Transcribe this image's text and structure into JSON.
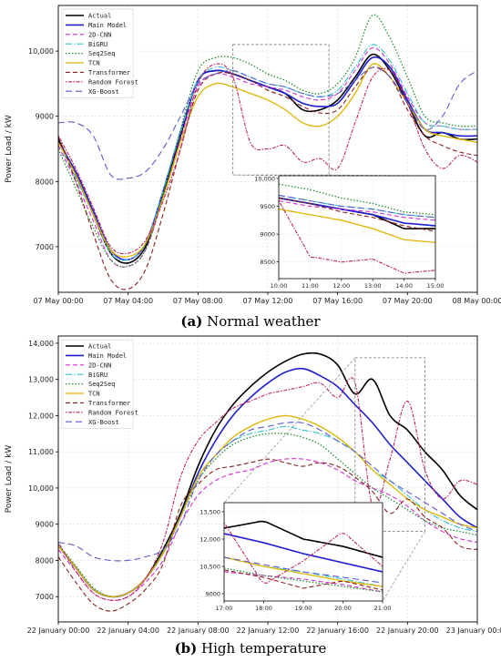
{
  "legend_labels": [
    "Actual",
    "Main Model",
    "2D-CNN",
    "BiGRU",
    "Seq2Seq",
    "TCN",
    "Transformer",
    "Random Forest",
    "XG-Boost"
  ],
  "series_styles": [
    {
      "color": "#000000",
      "dash": "",
      "width": 1.6
    },
    {
      "color": "#1f1fd0",
      "dash": "",
      "width": 1.6
    },
    {
      "color": "#d62fd6",
      "dash": "5,3",
      "width": 1.1
    },
    {
      "color": "#35c4cf",
      "dash": "7,2,1.5,2",
      "width": 1.1
    },
    {
      "color": "#1f8f2f",
      "dash": "1.5,2",
      "width": 1.3
    },
    {
      "color": "#e0b400",
      "dash": "",
      "width": 1.3
    },
    {
      "color": "#8a1f1f",
      "dash": "5,3",
      "width": 1.1
    },
    {
      "color": "#c02060",
      "dash": "1.5,1.5,4,1.5",
      "width": 1.1
    },
    {
      "color": "#5a5ad0",
      "dash": "7,4",
      "width": 1.1
    }
  ],
  "chart_data": [
    {
      "type": "line",
      "caption_letter": "(a)",
      "caption_text": " Normal weather",
      "ylabel": "Power Load / kW",
      "x_tick_labels": [
        "07 May 00:00",
        "07 May 04:00",
        "07 May 08:00",
        "07 May 12:00",
        "07 May 16:00",
        "07 May 20:00",
        "08 May 00:00"
      ],
      "x_tick_hours": [
        0,
        4,
        8,
        12,
        16,
        20,
        24
      ],
      "xlim_hours": [
        0,
        24
      ],
      "y_tick_labels": [
        "7000",
        "8000",
        "9000",
        "10,000"
      ],
      "y_tick_values": [
        7000,
        8000,
        9000,
        10000
      ],
      "ylim": [
        6300,
        10700
      ],
      "grid": true,
      "legend_position": "top-left",
      "x_hours": [
        0,
        1,
        2,
        3,
        4,
        5,
        6,
        7,
        8,
        9,
        10,
        11,
        12,
        13,
        14,
        15,
        16,
        17,
        18,
        19,
        20,
        21,
        22,
        23,
        24
      ],
      "series": [
        {
          "name": "Actual",
          "values": [
            8650,
            8100,
            7500,
            6900,
            6750,
            7000,
            7800,
            8700,
            9550,
            9700,
            9650,
            9550,
            9450,
            9350,
            9100,
            9100,
            9250,
            9600,
            9950,
            9700,
            9200,
            8700,
            8750,
            8650,
            8650
          ]
        },
        {
          "name": "Main Model",
          "values": [
            8600,
            8150,
            7550,
            6950,
            6800,
            7050,
            7850,
            8750,
            9550,
            9700,
            9650,
            9550,
            9450,
            9350,
            9200,
            9150,
            9200,
            9550,
            9900,
            9750,
            9250,
            8800,
            8750,
            8700,
            8700
          ]
        },
        {
          "name": "2D-CNN",
          "values": [
            8550,
            8000,
            7400,
            6800,
            6700,
            6950,
            7750,
            8650,
            9450,
            9650,
            9600,
            9500,
            9450,
            9400,
            9300,
            9250,
            9350,
            9700,
            10050,
            9800,
            9300,
            8900,
            8850,
            8800,
            8800
          ]
        },
        {
          "name": "BiGRU",
          "values": [
            8600,
            8050,
            7500,
            6900,
            6800,
            7050,
            7850,
            8750,
            9550,
            9750,
            9700,
            9600,
            9500,
            9450,
            9350,
            9300,
            9400,
            9750,
            10100,
            9850,
            9350,
            8900,
            8850,
            8800,
            8800
          ]
        },
        {
          "name": "Seq2Seq",
          "values": [
            8500,
            7900,
            7300,
            6800,
            6700,
            6950,
            7800,
            8800,
            9700,
            9900,
            9900,
            9800,
            9650,
            9550,
            9400,
            9350,
            9500,
            9900,
            10550,
            10200,
            9600,
            9000,
            8900,
            8850,
            8850
          ]
        },
        {
          "name": "TCN",
          "values": [
            8600,
            8100,
            7500,
            6950,
            6850,
            7050,
            7750,
            8600,
            9300,
            9500,
            9450,
            9350,
            9250,
            9100,
            8900,
            8850,
            9000,
            9350,
            9800,
            9600,
            9200,
            8800,
            8700,
            8650,
            8600
          ]
        },
        {
          "name": "Transformer",
          "values": [
            8700,
            8000,
            7200,
            6500,
            6350,
            6650,
            7500,
            8500,
            9400,
            9650,
            9650,
            9550,
            9400,
            9300,
            9150,
            9050,
            9100,
            9450,
            9750,
            9600,
            9100,
            8700,
            8550,
            8450,
            8400
          ]
        },
        {
          "name": "Random Forest",
          "values": [
            8700,
            8200,
            7600,
            7000,
            6900,
            7100,
            7700,
            8500,
            9500,
            9800,
            9600,
            8600,
            8500,
            8550,
            8300,
            8350,
            8200,
            8900,
            9600,
            9700,
            9200,
            8500,
            8200,
            8400,
            8300
          ]
        },
        {
          "name": "XG-Boost",
          "values": [
            8900,
            8900,
            8700,
            8100,
            8050,
            8150,
            8500,
            9000,
            9500,
            9650,
            9700,
            9600,
            9500,
            9450,
            9350,
            9300,
            9350,
            9550,
            9750,
            9600,
            9200,
            8800,
            9000,
            9500,
            9700
          ]
        }
      ],
      "inset": {
        "x_tick_labels": [
          "10:00",
          "11:00",
          "12:00",
          "13:00",
          "14:00",
          "15:00"
        ],
        "x_tick_hours": [
          10,
          11,
          12,
          13,
          14,
          15
        ],
        "y_tick_labels": [
          "8500",
          "9000",
          "9500",
          "10,000"
        ],
        "y_tick_values": [
          8500,
          9000,
          9500,
          10000
        ],
        "ylim": [
          8200,
          10050
        ]
      }
    },
    {
      "type": "line",
      "caption_letter": "(b)",
      "caption_text": " High temperature",
      "ylabel": "Power Load / kW",
      "x_tick_labels": [
        "22 January 00:00",
        "22 January 04:00",
        "22 January 08:00",
        "22 January 12:00",
        "22 January 16:00",
        "22 January 20:00",
        "23 January 00:00"
      ],
      "x_tick_hours": [
        0,
        4,
        8,
        12,
        16,
        20,
        24
      ],
      "xlim_hours": [
        0,
        24
      ],
      "y_tick_labels": [
        "7000",
        "8000",
        "9000",
        "10,000",
        "11,000",
        "12,000",
        "13,000",
        "14,000"
      ],
      "y_tick_values": [
        7000,
        8000,
        9000,
        10000,
        11000,
        12000,
        13000,
        14000
      ],
      "ylim": [
        6300,
        14200
      ],
      "grid": true,
      "legend_position": "top-left",
      "x_hours": [
        0,
        1,
        2,
        3,
        4,
        5,
        6,
        7,
        8,
        9,
        10,
        11,
        12,
        13,
        14,
        15,
        16,
        17,
        18,
        19,
        20,
        21,
        22,
        23,
        24
      ],
      "series": [
        {
          "name": "Actual",
          "values": [
            8400,
            7800,
            7200,
            7000,
            7100,
            7500,
            8300,
            9300,
            10600,
            11600,
            12300,
            12800,
            13200,
            13500,
            13700,
            13700,
            13400,
            12600,
            13000,
            12000,
            11600,
            11000,
            10500,
            9800,
            9400
          ]
        },
        {
          "name": "Main Model",
          "values": [
            8400,
            7800,
            7200,
            7000,
            7100,
            7500,
            8200,
            9200,
            10400,
            11300,
            12000,
            12500,
            12900,
            13200,
            13300,
            13100,
            12800,
            12300,
            11800,
            11200,
            10700,
            10200,
            9700,
            9200,
            8900
          ]
        },
        {
          "name": "2D-CNN",
          "values": [
            8300,
            7700,
            7100,
            6900,
            7000,
            7400,
            8000,
            9000,
            9800,
            10200,
            10400,
            10500,
            10700,
            10800,
            10800,
            10700,
            10500,
            10200,
            10000,
            9800,
            9500,
            9100,
            8800,
            8600,
            8500
          ]
        },
        {
          "name": "BiGRU",
          "values": [
            8400,
            7800,
            7200,
            7000,
            7100,
            7500,
            8200,
            9200,
            10300,
            10900,
            11300,
            11500,
            11600,
            11700,
            11600,
            11500,
            11300,
            11000,
            10500,
            10200,
            9800,
            9400,
            9100,
            8900,
            8800
          ]
        },
        {
          "name": "Seq2Seq",
          "values": [
            8450,
            7850,
            7250,
            7000,
            7100,
            7500,
            8250,
            9200,
            10200,
            10800,
            11200,
            11400,
            11500,
            11500,
            11400,
            11200,
            10800,
            10400,
            10000,
            9700,
            9400,
            9100,
            8900,
            8800,
            8700
          ]
        },
        {
          "name": "TCN",
          "values": [
            8400,
            7800,
            7200,
            7000,
            7100,
            7500,
            8200,
            9200,
            10300,
            10900,
            11400,
            11700,
            11900,
            12000,
            11900,
            11700,
            11400,
            11000,
            10500,
            10100,
            9700,
            9400,
            9200,
            9000,
            8900
          ]
        },
        {
          "name": "Transformer",
          "values": [
            8100,
            7400,
            6800,
            6600,
            6800,
            7200,
            7900,
            9500,
            10100,
            10500,
            10600,
            10700,
            10800,
            10700,
            10600,
            10700,
            10600,
            10300,
            9900,
            9300,
            9700,
            9200,
            8900,
            8400,
            8300
          ]
        },
        {
          "name": "Random Forest",
          "values": [
            8500,
            7700,
            7100,
            6900,
            7000,
            7500,
            8500,
            10300,
            11300,
            11800,
            12200,
            12400,
            12600,
            12700,
            12800,
            12900,
            12500,
            12900,
            9500,
            10800,
            12400,
            10500,
            9700,
            10200,
            10100
          ]
        },
        {
          "name": "XG-Boost",
          "values": [
            8500,
            8400,
            8100,
            8000,
            8000,
            8100,
            8300,
            9000,
            10200,
            10900,
            11300,
            11600,
            11700,
            11800,
            11800,
            11600,
            11300,
            11000,
            10600,
            10200,
            9900,
            9600,
            9300,
            9000,
            8800
          ]
        }
      ],
      "inset": {
        "x_tick_labels": [
          "17:00",
          "18:00",
          "19:00",
          "20:00",
          "21:00"
        ],
        "x_tick_hours": [
          17,
          18,
          19,
          20,
          21
        ],
        "y_tick_labels": [
          "9000",
          "10,500",
          "12,000",
          "13,500"
        ],
        "y_tick_values": [
          9000,
          10500,
          12000,
          13500
        ],
        "ylim": [
          8600,
          14000
        ]
      }
    }
  ]
}
